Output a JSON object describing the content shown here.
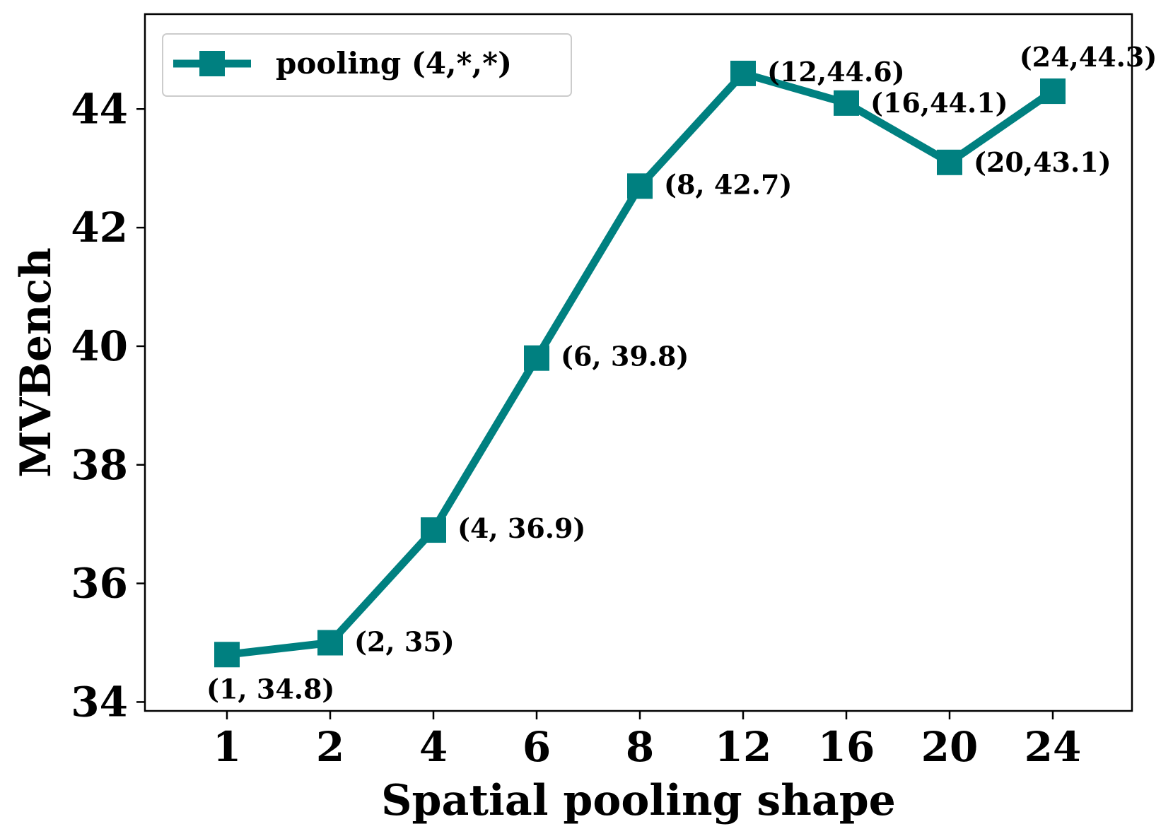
{
  "chart_data": {
    "type": "line",
    "xlabel": "Spatial pooling shape",
    "ylabel": "MVBench",
    "categories": [
      "1",
      "2",
      "4",
      "6",
      "8",
      "12",
      "16",
      "20",
      "24"
    ],
    "series": [
      {
        "name": "pooling (4,*,*)",
        "values": [
          34.8,
          35,
          36.9,
          39.8,
          42.7,
          44.6,
          44.1,
          43.1,
          44.3
        ],
        "color": "#008080",
        "marker": "square"
      }
    ],
    "data_labels": [
      "(1,  34.8)",
      "(2,  35)",
      "(4,  36.9)",
      "(6,  39.8)",
      "(8,  42.7)",
      "(12,44.6)",
      "(16,44.1)",
      "(20,43.1)",
      "(24,44.3)"
    ],
    "yticks": [
      34,
      36,
      38,
      40,
      42,
      44
    ],
    "ylim": [
      33.85,
      45.6
    ],
    "grid": false,
    "legend_position": "top-left"
  }
}
